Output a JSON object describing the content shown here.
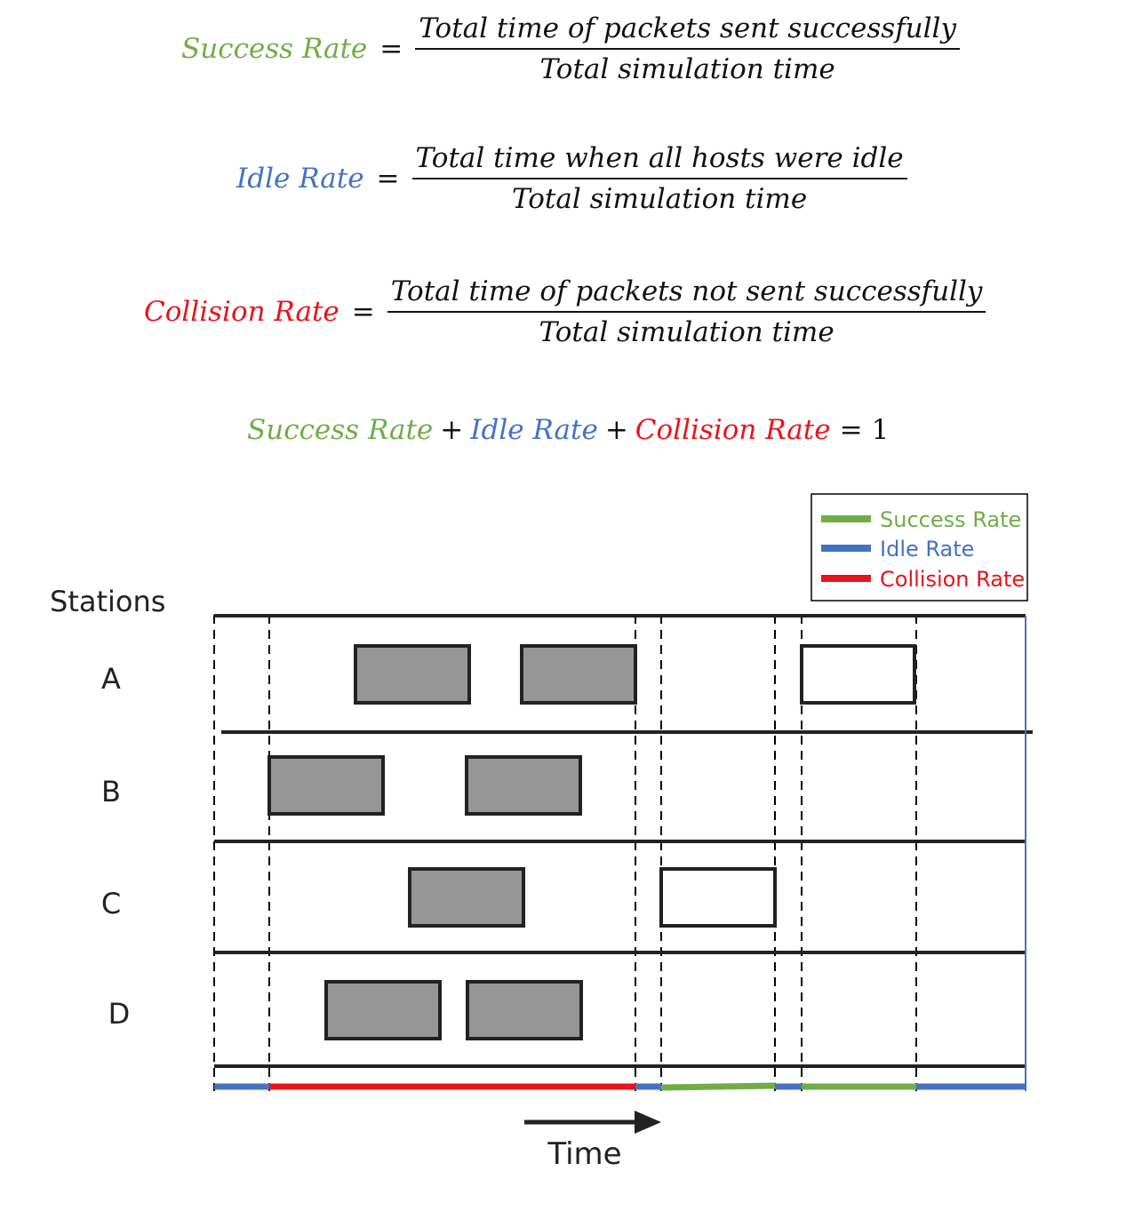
{
  "equations": {
    "success": {
      "lhs": "Success Rate",
      "op": "=",
      "numerator": "Total time of packets sent successfully",
      "denominator": "Total simulation time"
    },
    "idle": {
      "lhs": "Idle Rate",
      "op": "=",
      "numerator": "Total time when all hosts were idle",
      "denominator": "Total simulation time"
    },
    "collision": {
      "lhs": "Collision Rate",
      "op": "=",
      "numerator": "Total time of packets not sent successfully",
      "denominator": "Total simulation time"
    },
    "sum": {
      "success": "Success Rate",
      "plus1": "+",
      "idle": "Idle Rate",
      "plus2": "+",
      "collision": "Collision Rate",
      "eq": "=",
      "rhs": "1"
    }
  },
  "legend": {
    "items": [
      {
        "label": "Success Rate",
        "color": "#70ad47"
      },
      {
        "label": "Idle Rate",
        "color": "#4472c4"
      },
      {
        "label": "Collision Rate",
        "color": "#e8141b"
      }
    ]
  },
  "diagram": {
    "y_title": "Stations",
    "stations": [
      "A",
      "B",
      "C",
      "D"
    ],
    "x_title": "Time",
    "packet_fill": "#969696",
    "colors": {
      "success": "#70ad47",
      "idle": "#4472c4",
      "collision": "#e8141b"
    }
  }
}
